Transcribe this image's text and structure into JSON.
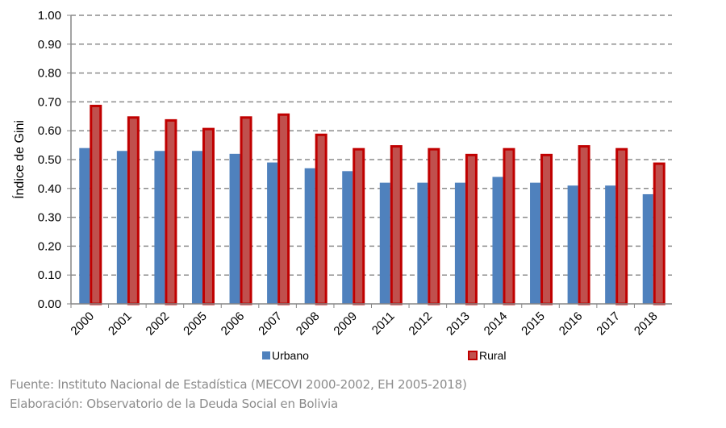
{
  "chart_data": {
    "type": "bar",
    "title": "",
    "xlabel": "",
    "ylabel": "Índice de Gini",
    "ylim": [
      0,
      1.0
    ],
    "yticks": [
      "0.00",
      "0.10",
      "0.20",
      "0.30",
      "0.40",
      "0.50",
      "0.60",
      "0.70",
      "0.80",
      "0.90",
      "1.00"
    ],
    "grid": true,
    "legend": "bottom",
    "categories": [
      "2000",
      "2001",
      "2002",
      "2005",
      "2006",
      "2007",
      "2008",
      "2009",
      "2011",
      "2012",
      "2013",
      "2014",
      "2015",
      "2016",
      "2017",
      "2018"
    ],
    "series": [
      {
        "name": "Urbano",
        "color": "#4f81bd",
        "values": [
          0.54,
          0.53,
          0.53,
          0.53,
          0.52,
          0.49,
          0.47,
          0.46,
          0.42,
          0.42,
          0.42,
          0.44,
          0.42,
          0.41,
          0.41,
          0.38
        ]
      },
      {
        "name": "Rural",
        "color": "#c0504d",
        "border": "#c00000",
        "values": [
          0.69,
          0.65,
          0.64,
          0.61,
          0.65,
          0.66,
          0.59,
          0.54,
          0.55,
          0.54,
          0.52,
          0.54,
          0.52,
          0.55,
          0.54,
          0.49
        ]
      }
    ]
  },
  "footer": {
    "source": "Fuente: Instituto Nacional de Estadística (MECOVI 2000-2002, EH 2005-2018)",
    "elaboration": "Elaboración: Observatorio de la Deuda Social en Bolivia"
  }
}
